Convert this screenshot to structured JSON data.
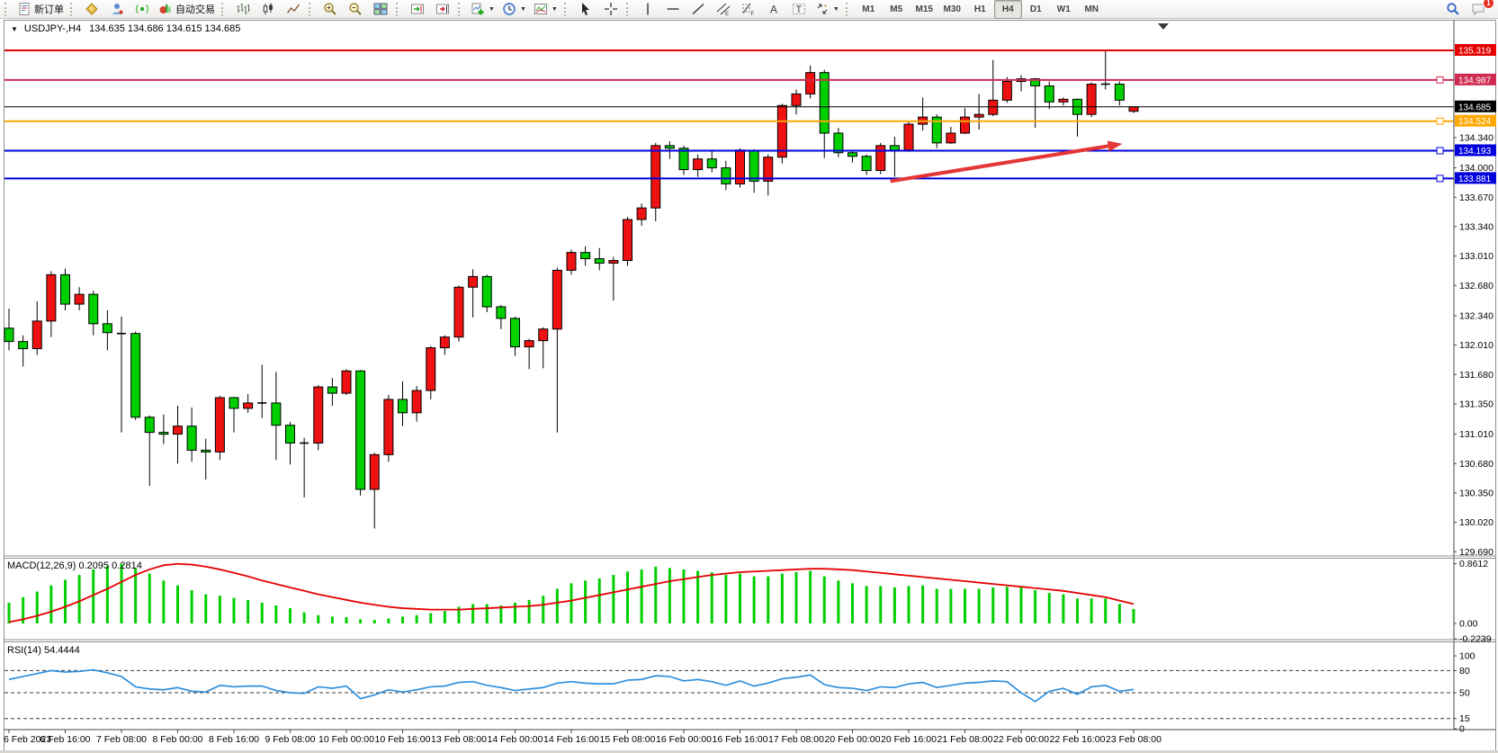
{
  "toolbar": {
    "new_order_label": "新订单",
    "autotrade_label": "自动交易",
    "timeframes": [
      "M1",
      "M5",
      "M15",
      "M30",
      "H1",
      "H4",
      "D1",
      "W1",
      "MN"
    ],
    "active_timeframe": "H4",
    "notification_count": "1"
  },
  "chart_title": {
    "symbol": "USDJPY-,H4",
    "ohlc": "134.635 134.686 134.615 134.685"
  },
  "chart_data": {
    "type": "candlestick",
    "symbol": "USDJPY-",
    "timeframe": "H4",
    "note": "Chinese color convention: red body = bullish (close>open), green body = bearish",
    "colors": {
      "background": "#ffffff",
      "bull": "#ee1111",
      "bear": "#00cf00",
      "candle_outline": "#000000",
      "bid_line": "#000000",
      "macd_histogram": "#00cf00",
      "macd_signal": "#e60000",
      "rsi_line": "#2e8fdd",
      "axis_text": "#000000",
      "arrow": "#e53535"
    },
    "current_ohlc": {
      "open": 134.635,
      "high": 134.686,
      "low": 134.615,
      "close": 134.685
    },
    "bid_price": "134.685",
    "price_axis_ticks": [
      "134.340",
      "134.000",
      "133.670",
      "133.340",
      "133.010",
      "132.680",
      "132.340",
      "132.010",
      "131.680",
      "131.350",
      "131.010",
      "130.680",
      "130.350",
      "130.020",
      "129.690"
    ],
    "horizontal_lines": [
      {
        "price": 135.319,
        "label": "135.319",
        "color": "#e60000",
        "thickness": 2,
        "handle": false
      },
      {
        "price": 134.987,
        "label": "134.987",
        "color": "#cf2b51",
        "thickness": 2,
        "handle": true
      },
      {
        "price": 134.524,
        "label": "134.524",
        "color": "#ffa800",
        "thickness": 2,
        "handle": true
      },
      {
        "price": 134.193,
        "label": "134.193",
        "color": "#0000dd",
        "thickness": 2,
        "handle": true
      },
      {
        "price": 133.881,
        "label": "133.881",
        "color": "#0000dd",
        "thickness": 2,
        "handle": true
      }
    ],
    "trend_arrow": {
      "from_bar": 62.7,
      "from_price": 133.85,
      "to_bar": 79.2,
      "to_price": 134.27,
      "color": "#e53535"
    },
    "candles_format": [
      "time",
      "open",
      "high",
      "low",
      "close"
    ],
    "candles": [
      [
        "6 Feb 00:00",
        132.2,
        132.42,
        131.95,
        132.05
      ],
      [
        "6 Feb 04:00",
        132.05,
        132.12,
        131.77,
        131.97
      ],
      [
        "6 Feb 08:00",
        131.97,
        132.5,
        131.9,
        132.28
      ],
      [
        "6 Feb 12:00",
        132.28,
        132.84,
        132.1,
        132.8
      ],
      [
        "6 Feb 16:00",
        132.8,
        132.87,
        132.4,
        132.47
      ],
      [
        "6 Feb 20:00",
        132.47,
        132.66,
        132.4,
        132.58
      ],
      [
        "7 Feb 00:00",
        132.58,
        132.62,
        132.12,
        132.25
      ],
      [
        "7 Feb 04:00",
        132.25,
        132.4,
        131.95,
        132.15
      ],
      [
        "7 Feb 08:00",
        132.14,
        132.33,
        131.03,
        132.14
      ],
      [
        "7 Feb 12:00",
        132.14,
        132.16,
        131.17,
        131.2
      ],
      [
        "7 Feb 16:00",
        131.2,
        131.22,
        130.43,
        131.03
      ],
      [
        "7 Feb 20:00",
        131.03,
        131.23,
        130.9,
        131.01
      ],
      [
        "8 Feb 00:00",
        131.01,
        131.33,
        130.68,
        131.1
      ],
      [
        "8 Feb 04:00",
        131.1,
        131.31,
        130.7,
        130.83
      ],
      [
        "8 Feb 08:00",
        130.83,
        130.96,
        130.5,
        130.81
      ],
      [
        "8 Feb 12:00",
        130.81,
        131.44,
        130.72,
        131.42
      ],
      [
        "8 Feb 16:00",
        131.42,
        131.43,
        131.03,
        131.3
      ],
      [
        "8 Feb 20:00",
        131.3,
        131.46,
        131.25,
        131.36
      ],
      [
        "9 Feb 00:00",
        131.36,
        131.79,
        131.19,
        131.36
      ],
      [
        "9 Feb 04:00",
        131.36,
        131.71,
        130.72,
        131.11
      ],
      [
        "9 Feb 08:00",
        131.11,
        131.15,
        130.67,
        130.91
      ],
      [
        "9 Feb 12:00",
        130.91,
        130.97,
        130.3,
        130.91
      ],
      [
        "9 Feb 16:00",
        130.91,
        131.56,
        130.83,
        131.54
      ],
      [
        "9 Feb 20:00",
        131.54,
        131.64,
        131.33,
        131.47
      ],
      [
        "10 Feb 00:00",
        131.47,
        131.74,
        131.45,
        131.72
      ],
      [
        "10 Feb 04:00",
        131.72,
        131.73,
        130.32,
        130.39
      ],
      [
        "10 Feb 08:00",
        130.39,
        130.8,
        129.95,
        130.78
      ],
      [
        "10 Feb 12:00",
        130.78,
        131.45,
        130.7,
        131.4
      ],
      [
        "10 Feb 16:00",
        131.4,
        131.6,
        131.1,
        131.25
      ],
      [
        "10 Feb 20:00",
        131.25,
        131.55,
        131.15,
        131.5
      ],
      [
        "13 Feb 00:00",
        131.5,
        132.0,
        131.4,
        131.98
      ],
      [
        "13 Feb 04:00",
        131.98,
        132.12,
        131.9,
        132.1
      ],
      [
        "13 Feb 08:00",
        132.1,
        132.68,
        132.05,
        132.66
      ],
      [
        "13 Feb 12:00",
        132.66,
        132.86,
        132.32,
        132.78
      ],
      [
        "13 Feb 16:00",
        132.78,
        132.8,
        132.38,
        132.44
      ],
      [
        "13 Feb 20:00",
        132.44,
        132.46,
        132.19,
        132.31
      ],
      [
        "14 Feb 00:00",
        132.31,
        132.33,
        131.89,
        131.99
      ],
      [
        "14 Feb 04:00",
        131.99,
        132.08,
        131.74,
        132.06
      ],
      [
        "14 Feb 08:00",
        132.06,
        132.21,
        131.75,
        132.19
      ],
      [
        "14 Feb 12:00",
        132.19,
        132.88,
        131.03,
        132.85
      ],
      [
        "14 Feb 16:00",
        132.85,
        133.08,
        132.8,
        133.05
      ],
      [
        "14 Feb 20:00",
        133.05,
        133.12,
        132.9,
        132.98
      ],
      [
        "15 Feb 00:00",
        132.98,
        133.1,
        132.85,
        132.93
      ],
      [
        "15 Feb 04:00",
        132.93,
        133.0,
        132.51,
        132.96
      ],
      [
        "15 Feb 08:00",
        132.96,
        133.45,
        132.9,
        133.42
      ],
      [
        "15 Feb 12:00",
        133.42,
        133.6,
        133.35,
        133.55
      ],
      [
        "15 Feb 16:00",
        133.55,
        134.28,
        133.4,
        134.25
      ],
      [
        "15 Feb 20:00",
        134.25,
        134.3,
        134.1,
        134.22
      ],
      [
        "16 Feb 00:00",
        134.22,
        134.25,
        133.92,
        133.98
      ],
      [
        "16 Feb 04:00",
        133.98,
        134.15,
        133.9,
        134.1
      ],
      [
        "16 Feb 08:00",
        134.1,
        134.2,
        133.95,
        134.0
      ],
      [
        "16 Feb 12:00",
        134.0,
        134.08,
        133.75,
        133.82
      ],
      [
        "16 Feb 16:00",
        133.82,
        134.22,
        133.78,
        134.2
      ],
      [
        "16 Feb 20:00",
        134.19,
        134.21,
        133.72,
        133.85
      ],
      [
        "17 Feb 00:00",
        133.85,
        134.15,
        133.69,
        134.12
      ],
      [
        "17 Feb 04:00",
        134.12,
        134.72,
        134.05,
        134.7
      ],
      [
        "17 Feb 08:00",
        134.7,
        134.88,
        134.6,
        134.83
      ],
      [
        "17 Feb 12:00",
        134.83,
        135.15,
        134.78,
        135.07
      ],
      [
        "17 Feb 16:00",
        135.07,
        135.1,
        134.11,
        134.39
      ],
      [
        "17 Feb 20:00",
        134.39,
        134.45,
        134.12,
        134.17
      ],
      [
        "20 Feb 00:00",
        134.17,
        134.19,
        134.06,
        134.13
      ],
      [
        "20 Feb 04:00",
        134.13,
        134.15,
        133.92,
        133.97
      ],
      [
        "20 Feb 08:00",
        133.97,
        134.28,
        133.93,
        134.25
      ],
      [
        "20 Feb 12:00",
        134.25,
        134.35,
        133.9,
        134.2
      ],
      [
        "20 Feb 16:00",
        134.2,
        134.52,
        134.18,
        134.49
      ],
      [
        "20 Feb 20:00",
        134.49,
        134.79,
        134.42,
        134.57
      ],
      [
        "21 Feb 00:00",
        134.57,
        134.6,
        134.22,
        134.28
      ],
      [
        "21 Feb 04:00",
        134.28,
        134.46,
        134.27,
        134.39
      ],
      [
        "21 Feb 08:00",
        134.39,
        134.67,
        134.38,
        134.57
      ],
      [
        "21 Feb 12:00",
        134.57,
        134.83,
        134.43,
        134.6
      ],
      [
        "21 Feb 16:00",
        134.6,
        135.21,
        134.58,
        134.76
      ],
      [
        "21 Feb 20:00",
        134.76,
        135.02,
        134.73,
        134.97
      ],
      [
        "22 Feb 00:00",
        134.97,
        135.04,
        134.86,
        135.0
      ],
      [
        "22 Feb 04:00",
        135.0,
        135.01,
        134.45,
        134.92
      ],
      [
        "22 Feb 08:00",
        134.92,
        134.97,
        134.66,
        134.74
      ],
      [
        "22 Feb 12:00",
        134.74,
        134.79,
        134.7,
        134.77
      ],
      [
        "22 Feb 16:00",
        134.77,
        134.78,
        134.35,
        134.6
      ],
      [
        "22 Feb 20:00",
        134.6,
        134.96,
        134.57,
        134.94
      ],
      [
        "23 Feb 00:00",
        134.94,
        135.32,
        134.88,
        134.94
      ],
      [
        "23 Feb 04:00",
        134.94,
        134.97,
        134.7,
        134.76
      ],
      [
        "23 Feb 08:00",
        134.635,
        134.686,
        134.615,
        134.685
      ]
    ],
    "time_axis": [
      {
        "index": 0,
        "label": "6 Feb 2023"
      },
      {
        "index": 4,
        "label": "6 Feb 16:00"
      },
      {
        "index": 8,
        "label": "7 Feb 08:00"
      },
      {
        "index": 12,
        "label": "8 Feb 00:00"
      },
      {
        "index": 16,
        "label": "8 Feb 16:00"
      },
      {
        "index": 20,
        "label": "9 Feb 08:00"
      },
      {
        "index": 24,
        "label": "10 Feb 00:00"
      },
      {
        "index": 28,
        "label": "10 Feb 16:00"
      },
      {
        "index": 32,
        "label": "13 Feb 08:00"
      },
      {
        "index": 36,
        "label": "14 Feb 00:00"
      },
      {
        "index": 40,
        "label": "14 Feb 16:00"
      },
      {
        "index": 44,
        "label": "15 Feb 08:00"
      },
      {
        "index": 48,
        "label": "16 Feb 00:00"
      },
      {
        "index": 52,
        "label": "16 Feb 16:00"
      },
      {
        "index": 56,
        "label": "17 Feb 08:00"
      },
      {
        "index": 60,
        "label": "20 Feb 00:00"
      },
      {
        "index": 64,
        "label": "20 Feb 16:00"
      },
      {
        "index": 68,
        "label": "21 Feb 08:00"
      },
      {
        "index": 72,
        "label": "22 Feb 00:00"
      },
      {
        "index": 76,
        "label": "22 Feb 16:00"
      },
      {
        "index": 80,
        "label": "23 Feb 08:00"
      }
    ],
    "macd": {
      "name": "MACD",
      "params": [
        12,
        26,
        9
      ],
      "label": "MACD(12,26,9) 0.2095 0.2814",
      "current_macd": 0.2095,
      "current_signal": 0.2814,
      "scale_max": "0.8612",
      "scale_zero": "0.00",
      "scale_min": "-0.2239",
      "histogram": [
        0.3,
        0.38,
        0.46,
        0.55,
        0.63,
        0.7,
        0.78,
        0.83,
        0.8612,
        0.8,
        0.72,
        0.62,
        0.55,
        0.48,
        0.42,
        0.4,
        0.37,
        0.34,
        0.3,
        0.26,
        0.22,
        0.16,
        0.12,
        0.1,
        0.09,
        0.06,
        0.05,
        0.07,
        0.1,
        0.12,
        0.15,
        0.18,
        0.24,
        0.28,
        0.28,
        0.26,
        0.3,
        0.34,
        0.4,
        0.5,
        0.58,
        0.62,
        0.65,
        0.7,
        0.75,
        0.78,
        0.82,
        0.8,
        0.78,
        0.76,
        0.74,
        0.7,
        0.72,
        0.68,
        0.68,
        0.72,
        0.74,
        0.76,
        0.68,
        0.62,
        0.58,
        0.54,
        0.54,
        0.52,
        0.54,
        0.55,
        0.5,
        0.5,
        0.5,
        0.5,
        0.52,
        0.53,
        0.52,
        0.48,
        0.44,
        0.42,
        0.36,
        0.36,
        0.36,
        0.28,
        0.2095
      ],
      "signal": [
        0.02,
        0.06,
        0.11,
        0.17,
        0.24,
        0.32,
        0.41,
        0.5,
        0.6,
        0.7,
        0.78,
        0.84,
        0.86,
        0.85,
        0.82,
        0.78,
        0.73,
        0.68,
        0.62,
        0.57,
        0.52,
        0.47,
        0.42,
        0.38,
        0.34,
        0.3,
        0.27,
        0.24,
        0.22,
        0.21,
        0.2,
        0.2,
        0.2,
        0.21,
        0.22,
        0.23,
        0.24,
        0.25,
        0.27,
        0.3,
        0.33,
        0.37,
        0.41,
        0.45,
        0.49,
        0.53,
        0.57,
        0.61,
        0.64,
        0.67,
        0.7,
        0.72,
        0.74,
        0.75,
        0.76,
        0.77,
        0.78,
        0.79,
        0.79,
        0.78,
        0.77,
        0.75,
        0.73,
        0.71,
        0.69,
        0.67,
        0.65,
        0.63,
        0.61,
        0.59,
        0.57,
        0.55,
        0.53,
        0.51,
        0.49,
        0.47,
        0.44,
        0.41,
        0.38,
        0.33,
        0.2814
      ]
    },
    "rsi": {
      "name": "RSI",
      "period": 14,
      "label": "RSI(14) 54.4444",
      "current": 54.4444,
      "levels": [
        80,
        50,
        15
      ],
      "scale_labels": [
        "100",
        "80",
        "50",
        "15",
        "0"
      ],
      "values": [
        68,
        72,
        76,
        80,
        78,
        79,
        81,
        77,
        72,
        58,
        55,
        54,
        57,
        52,
        51,
        60,
        58,
        59,
        59,
        53,
        50,
        49,
        58,
        56,
        59,
        42,
        47,
        54,
        51,
        54,
        58,
        59,
        64,
        65,
        60,
        57,
        53,
        55,
        57,
        63,
        65,
        63,
        62,
        62,
        67,
        68,
        73,
        72,
        66,
        68,
        65,
        60,
        66,
        59,
        63,
        69,
        71,
        74,
        61,
        57,
        56,
        53,
        58,
        57,
        62,
        64,
        57,
        60,
        63,
        64,
        66,
        65,
        50,
        38,
        52,
        56,
        48,
        58,
        60,
        52,
        54.44
      ]
    }
  }
}
